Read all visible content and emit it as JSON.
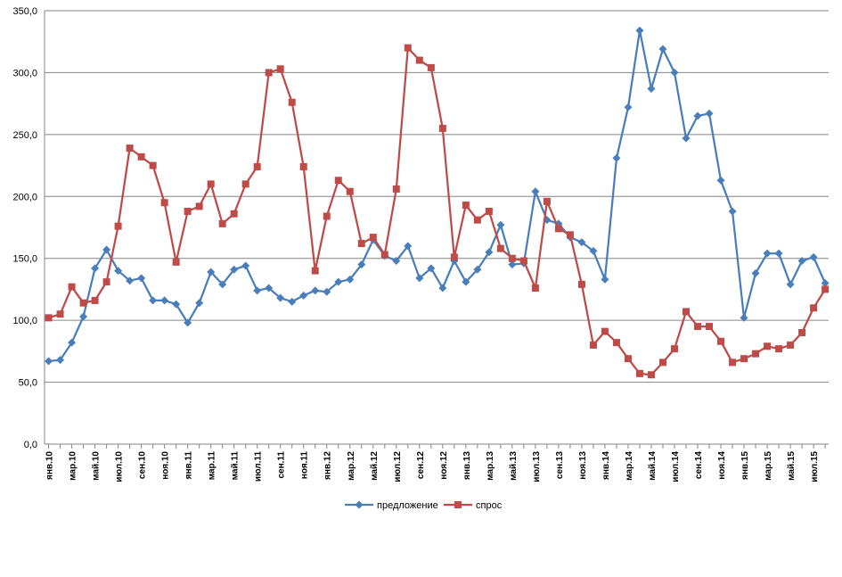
{
  "chart_data": {
    "type": "line",
    "title": "",
    "xlabel": "",
    "ylabel": "",
    "ylim": [
      0,
      350
    ],
    "yticks": [
      "0,0",
      "50,0",
      "100,0",
      "150,0",
      "200,0",
      "250,0",
      "300,0",
      "350,0"
    ],
    "ytick_values": [
      0,
      50,
      100,
      150,
      200,
      250,
      300,
      350
    ],
    "grid": "horizontal",
    "legend_position": "bottom",
    "categories": [
      "янв.10",
      "фев.10",
      "мар.10",
      "апр.10",
      "май.10",
      "июн.10",
      "июл.10",
      "авг.10",
      "сен.10",
      "окт.10",
      "ноя.10",
      "дек.10",
      "янв.11",
      "фев.11",
      "мар.11",
      "апр.11",
      "май.11",
      "июн.11",
      "июл.11",
      "авг.11",
      "сен.11",
      "окт.11",
      "ноя.11",
      "дек.11",
      "янв.12",
      "фев.12",
      "мар.12",
      "апр.12",
      "май.12",
      "июн.12",
      "июл.12",
      "авг.12",
      "сен.12",
      "окт.12",
      "ноя.12",
      "дек.12",
      "янв.13",
      "фев.13",
      "мар.13",
      "апр.13",
      "май.13",
      "июн.13",
      "июл.13",
      "авг.13",
      "сен.13",
      "окт.13",
      "ноя.13",
      "дек.13",
      "янв.14",
      "фев.14",
      "мар.14",
      "апр.14",
      "май.14",
      "июн.14",
      "июл.14",
      "авг.14",
      "сен.14",
      "окт.14",
      "ноя.14",
      "дек.14",
      "янв.15",
      "фев.15",
      "мар.15",
      "апр.15",
      "май.15",
      "июн.15",
      "июл.15",
      "авг.15"
    ],
    "visible_tick_labels": [
      "янв.10",
      "мар.10",
      "май.10",
      "июл.10",
      "сен.10",
      "ноя.10",
      "янв.11",
      "мар.11",
      "май.11",
      "июл.11",
      "сен.11",
      "ноя.11",
      "янв.12",
      "мар.12",
      "май.12",
      "июл.12",
      "сен.12",
      "ноя.12",
      "янв.13",
      "мар.13",
      "май.13",
      "июл.13",
      "сен.13",
      "ноя.13",
      "янв.14",
      "мар.14",
      "май.14",
      "июл.14",
      "сен.14",
      "ноя.14",
      "янв.15",
      "мар.15",
      "май.15",
      "июл.15"
    ],
    "series": [
      {
        "name": "предложение",
        "color": "#4a7ebb",
        "marker": "diamond",
        "values": [
          67,
          68,
          82,
          103,
          142,
          157,
          140,
          132,
          134,
          116,
          116,
          113,
          98,
          114,
          139,
          129,
          141,
          144,
          124,
          126,
          118,
          115,
          120,
          124,
          123,
          131,
          133,
          145,
          165,
          152,
          148,
          160,
          134,
          142,
          126,
          148,
          131,
          141,
          155,
          177,
          145,
          146,
          204,
          181,
          178,
          167,
          163,
          156,
          133,
          231,
          272,
          334,
          287,
          319,
          300,
          247,
          265,
          267,
          213,
          188,
          102,
          138,
          154,
          154,
          129,
          148,
          151,
          130
        ]
      },
      {
        "name": "спрос",
        "color": "#be4b48",
        "marker": "square",
        "values": [
          102,
          105,
          127,
          114,
          116,
          131,
          176,
          239,
          232,
          225,
          195,
          147,
          188,
          192,
          210,
          178,
          186,
          210,
          224,
          300,
          303,
          276,
          224,
          140,
          184,
          213,
          204,
          162,
          167,
          153,
          206,
          320,
          310,
          304,
          255,
          151,
          193,
          181,
          188,
          158,
          150,
          148,
          126,
          196,
          174,
          169,
          129,
          80,
          91,
          82,
          69,
          57,
          56,
          66,
          77,
          107,
          95,
          95,
          83,
          66,
          69,
          73,
          79,
          77,
          80,
          90,
          110,
          125
        ]
      }
    ]
  }
}
